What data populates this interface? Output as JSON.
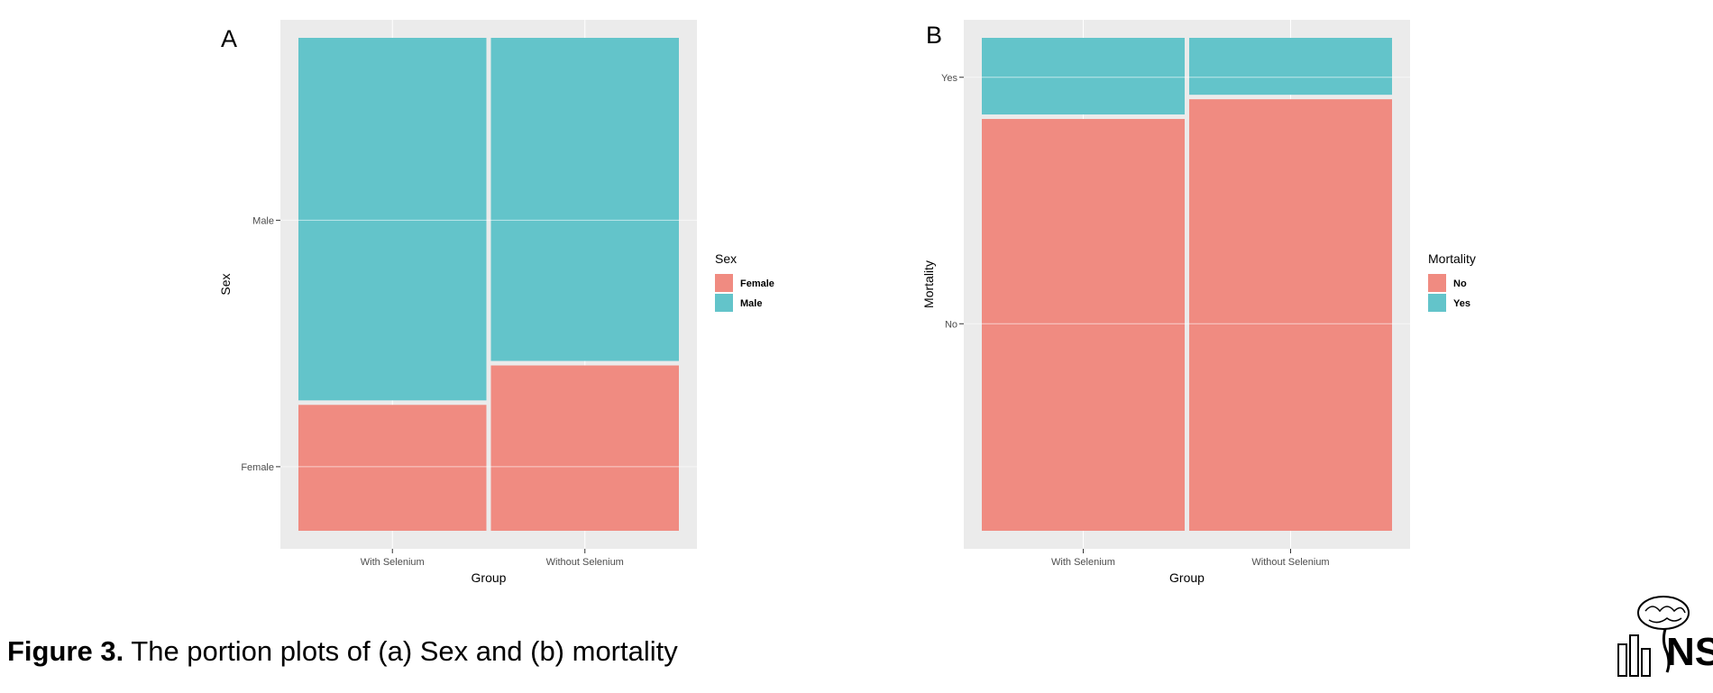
{
  "caption": {
    "label": "Figure 3.",
    "text": "The portion plots of (a) Sex and (b) mortality"
  },
  "colors": {
    "panel_background": "#EBEBEB",
    "grid": "#FFFFFF",
    "teal": "#63C4CA",
    "salmon": "#F08B81"
  },
  "logo": {
    "text": "NS",
    "icon": "brain-logo-icon"
  },
  "chart_data": [
    {
      "type": "mosaic",
      "panel_label": "A",
      "xlabel": "Group",
      "ylabel": "Sex",
      "categories": [
        "With Selenium",
        "Without Selenium"
      ],
      "y_ticks": [
        "Female",
        "Male"
      ],
      "legend": {
        "title": "Sex",
        "position": "right",
        "entries": [
          "Female",
          "Male"
        ]
      },
      "series": [
        {
          "name": "Female",
          "color": "#F08B81",
          "values": [
            0.26,
            0.34
          ]
        },
        {
          "name": "Male",
          "color": "#63C4CA",
          "values": [
            0.74,
            0.66
          ]
        }
      ],
      "grid": true
    },
    {
      "type": "mosaic",
      "panel_label": "B",
      "xlabel": "Group",
      "ylabel": "Mortality",
      "categories": [
        "With Selenium",
        "Without Selenium"
      ],
      "y_ticks": [
        "No",
        "Yes"
      ],
      "legend": {
        "title": "Mortality",
        "position": "right",
        "entries": [
          "No",
          "Yes"
        ]
      },
      "series": [
        {
          "name": "No",
          "color": "#F08B81",
          "values": [
            0.84,
            0.88
          ]
        },
        {
          "name": "Yes",
          "color": "#63C4CA",
          "values": [
            0.16,
            0.12
          ]
        }
      ],
      "grid": true
    }
  ]
}
